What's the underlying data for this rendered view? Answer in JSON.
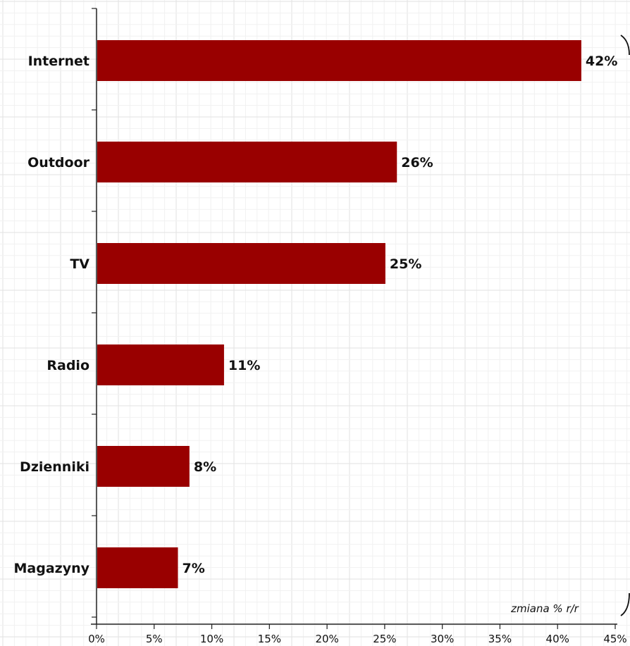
{
  "chart_data": {
    "type": "bar",
    "orientation": "horizontal",
    "categories": [
      "Internet",
      "Outdoor",
      "TV",
      "Radio",
      "Dzienniki",
      "Magazyny"
    ],
    "values": [
      42,
      26,
      25,
      11,
      8,
      7
    ],
    "value_labels": [
      "42%",
      "26%",
      "25%",
      "11%",
      "8%",
      "7%"
    ],
    "xlim": [
      0,
      45
    ],
    "x_ticks": [
      0,
      5,
      10,
      15,
      20,
      25,
      30,
      35,
      40,
      45
    ],
    "x_tick_labels": [
      "0%",
      "5%",
      "10%",
      "15%",
      "20%",
      "25%",
      "30%",
      "35%",
      "40%",
      "45%"
    ],
    "annotation": "zmiana % r/r",
    "bar_color": "#990000",
    "grid": true,
    "grid_color": "#ececec"
  }
}
